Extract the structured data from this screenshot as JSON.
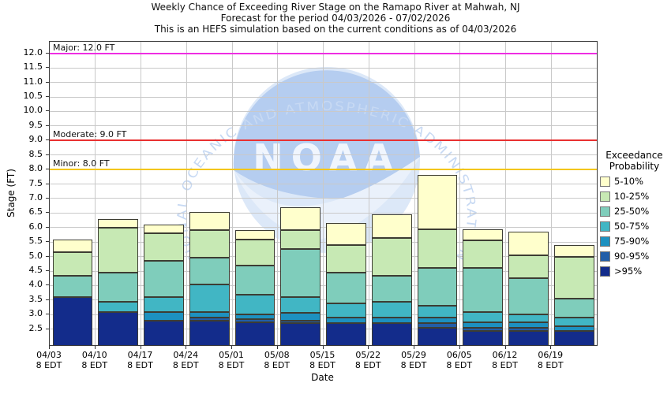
{
  "title": {
    "line1": "Weekly Chance of Exceeding River Stage on the Ramapo River at Mahwah, NJ",
    "line2": "Forecast for the period 04/03/2026 - 07/02/2026",
    "line3": "This is an HEFS simulation based on the current conditions as of 04/03/2026"
  },
  "y_axis": {
    "label": "Stage (FT)",
    "tick_min": 2.5,
    "tick_max": 12.0,
    "tick_step": 0.5
  },
  "x_axis": {
    "label": "Date",
    "tick_sub_label": "8 EDT"
  },
  "thresholds": [
    {
      "name": "major-flood-line",
      "label": "Major: 12.0 FT",
      "stage": 12.0,
      "color": "#ee2ee2"
    },
    {
      "name": "moderate-flood-line",
      "label": "Moderate: 9.0 FT",
      "stage": 9.0,
      "color": "#e93131"
    },
    {
      "name": "minor-flood-line",
      "label": "Minor: 8.0 FT",
      "stage": 8.0,
      "color": "#f3c618"
    }
  ],
  "legend": {
    "title_line1": "Exceedance",
    "title_line2": "Probability",
    "items": [
      {
        "label": "5-10%",
        "color": "#ffffcc"
      },
      {
        "label": "10-25%",
        "color": "#c7e9b4"
      },
      {
        "label": "25-50%",
        "color": "#7fcdbb"
      },
      {
        "label": "50-75%",
        "color": "#41b6c4"
      },
      {
        "label": "75-90%",
        "color": "#1d91c0"
      },
      {
        "label": "90-95%",
        "color": "#225ea8"
      },
      {
        "label": ">95%",
        "color": "#132c8b"
      }
    ]
  },
  "watermark": {
    "ring_text": "NATIONAL OCEANIC AND ATMOSPHERIC ADMINISTRATION",
    "center_text": "NOAA"
  },
  "chart_data": {
    "type": "bar",
    "stacked": true,
    "title": "Weekly Chance of Exceeding River Stage on the Ramapo River at Mahwah, NJ",
    "xlabel": "Date",
    "ylabel": "Stage (FT)",
    "ylim": [
      1.95,
      12.4
    ],
    "grid": true,
    "legend_position": "right",
    "bands_order_bottom_to_top": [
      ">95%",
      "90-95%",
      "75-90%",
      "50-75%",
      "25-50%",
      "10-25%",
      "5-10%"
    ],
    "band_colors": {
      "5-10%": "#ffffcc",
      "10-25%": "#c7e9b4",
      "25-50%": "#7fcdbb",
      "50-75%": "#41b6c4",
      "75-90%": "#1d91c0",
      "90-95%": "#225ea8",
      ">95%": "#132c8b"
    },
    "categories": [
      "04/03",
      "04/10",
      "04/17",
      "04/24",
      "05/01",
      "05/08",
      "05/15",
      "05/22",
      "05/29",
      "06/05",
      "06/12",
      "06/19"
    ],
    "bars": [
      {
        "date": "04/03",
        "time": "8 EDT",
        "stack": [
          [
            ">95%",
            3.6
          ],
          [
            "25-50%",
            4.35
          ],
          [
            "10-25%",
            5.15
          ],
          [
            "5-10%",
            5.6
          ]
        ]
      },
      {
        "date": "04/10",
        "time": "8 EDT",
        "stack": [
          [
            ">95%",
            3.1
          ],
          [
            "50-75%",
            3.45
          ],
          [
            "25-50%",
            4.45
          ],
          [
            "10-25%",
            6.0
          ],
          [
            "5-10%",
            6.3
          ]
        ]
      },
      {
        "date": "04/17",
        "time": "8 EDT",
        "stack": [
          [
            ">95%",
            2.8
          ],
          [
            "75-90%",
            3.1
          ],
          [
            "50-75%",
            3.6
          ],
          [
            "25-50%",
            4.85
          ],
          [
            "10-25%",
            5.8
          ],
          [
            "5-10%",
            6.1
          ]
        ]
      },
      {
        "date": "04/24",
        "time": "8 EDT",
        "stack": [
          [
            ">95%",
            2.8
          ],
          [
            "90-95%",
            2.9
          ],
          [
            "75-90%",
            3.1
          ],
          [
            "50-75%",
            4.05
          ],
          [
            "25-50%",
            4.95
          ],
          [
            "10-25%",
            5.9
          ],
          [
            "5-10%",
            6.55
          ]
        ]
      },
      {
        "date": "05/01",
        "time": "8 EDT",
        "stack": [
          [
            ">95%",
            2.75
          ],
          [
            "90-95%",
            2.85
          ],
          [
            "75-90%",
            3.0
          ],
          [
            "50-75%",
            3.7
          ],
          [
            "25-50%",
            4.7
          ],
          [
            "10-25%",
            5.6
          ],
          [
            "5-10%",
            5.9
          ]
        ]
      },
      {
        "date": "05/08",
        "time": "8 EDT",
        "stack": [
          [
            ">95%",
            2.7
          ],
          [
            "90-95%",
            2.8
          ],
          [
            "75-90%",
            3.05
          ],
          [
            "50-75%",
            3.6
          ],
          [
            "25-50%",
            5.25
          ],
          [
            "10-25%",
            5.9
          ],
          [
            "5-10%",
            6.7
          ]
        ]
      },
      {
        "date": "05/15",
        "time": "8 EDT",
        "stack": [
          [
            ">95%",
            2.7
          ],
          [
            "75-90%",
            2.9
          ],
          [
            "50-75%",
            3.4
          ],
          [
            "25-50%",
            4.45
          ],
          [
            "10-25%",
            5.4
          ],
          [
            "5-10%",
            6.15
          ]
        ]
      },
      {
        "date": "05/22",
        "time": "8 EDT",
        "stack": [
          [
            ">95%",
            2.7
          ],
          [
            "75-90%",
            2.9
          ],
          [
            "50-75%",
            3.45
          ],
          [
            "25-50%",
            4.35
          ],
          [
            "10-25%",
            5.65
          ],
          [
            "5-10%",
            6.45
          ]
        ]
      },
      {
        "date": "05/29",
        "time": "8 EDT",
        "stack": [
          [
            ">95%",
            2.55
          ],
          [
            "90-95%",
            2.7
          ],
          [
            "75-90%",
            2.9
          ],
          [
            "50-75%",
            3.3
          ],
          [
            "25-50%",
            4.6
          ],
          [
            "10-25%",
            5.95
          ],
          [
            "5-10%",
            7.8
          ]
        ]
      },
      {
        "date": "06/05",
        "time": "8 EDT",
        "stack": [
          [
            ">95%",
            2.45
          ],
          [
            "90-95%",
            2.55
          ],
          [
            "75-90%",
            2.75
          ],
          [
            "50-75%",
            3.1
          ],
          [
            "25-50%",
            4.6
          ],
          [
            "10-25%",
            5.55
          ],
          [
            "5-10%",
            5.95
          ]
        ]
      },
      {
        "date": "06/12",
        "time": "8 EDT",
        "stack": [
          [
            ">95%",
            2.45
          ],
          [
            "90-95%",
            2.55
          ],
          [
            "75-90%",
            2.75
          ],
          [
            "50-75%",
            3.0
          ],
          [
            "25-50%",
            4.25
          ],
          [
            "10-25%",
            5.05
          ],
          [
            "5-10%",
            5.85
          ]
        ]
      },
      {
        "date": "06/19",
        "time": "8 EDT",
        "stack": [
          [
            ">95%",
            2.45
          ],
          [
            "75-90%",
            2.6
          ],
          [
            "50-75%",
            2.9
          ],
          [
            "25-50%",
            3.55
          ],
          [
            "10-25%",
            5.0
          ],
          [
            "5-10%",
            5.4
          ]
        ]
      }
    ]
  }
}
